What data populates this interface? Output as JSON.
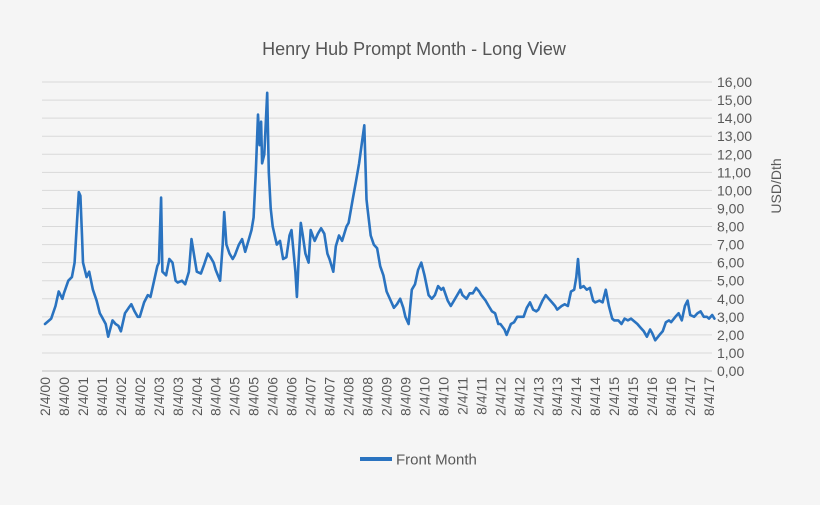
{
  "chart_data": {
    "type": "line",
    "title": "Henry Hub Prompt Month - Long View",
    "ylabel": "USD/Dth",
    "xlabel": "",
    "y_axis_position": "right",
    "ylim": [
      0,
      16
    ],
    "y_ticks": [
      0,
      1,
      2,
      3,
      4,
      5,
      6,
      7,
      8,
      9,
      10,
      11,
      12,
      13,
      14,
      15,
      16
    ],
    "y_tick_labels": [
      "0,00",
      "1,00",
      "2,00",
      "3,00",
      "4,00",
      "5,00",
      "6,00",
      "7,00",
      "8,00",
      "9,00",
      "10,00",
      "11,00",
      "12,00",
      "13,00",
      "14,00",
      "15,00",
      "16,00"
    ],
    "x_tick_labels": [
      "2/4/00",
      "8/4/00",
      "2/4/01",
      "8/4/01",
      "2/4/02",
      "8/4/02",
      "2/4/03",
      "8/4/03",
      "2/4/04",
      "8/4/04",
      "2/4/05",
      "8/4/05",
      "2/4/06",
      "8/4/06",
      "2/4/07",
      "8/4/07",
      "2/4/08",
      "8/4/08",
      "2/4/09",
      "8/4/09",
      "2/4/10",
      "8/4/10",
      "2/4/11",
      "8/4/11",
      "2/4/12",
      "8/4/12",
      "2/4/13",
      "8/4/13",
      "2/4/14",
      "8/4/14",
      "2/4/15",
      "8/4/15",
      "2/4/16",
      "8/4/16",
      "2/4/17",
      "8/4/17"
    ],
    "grid": true,
    "legend": {
      "placement": "bottom",
      "entries": [
        "Front Month"
      ]
    },
    "series": [
      {
        "name": "Front Month",
        "color": "#2a73c0",
        "points": [
          [
            "2000-02-04",
            2.6
          ],
          [
            "2000-04-04",
            2.9
          ],
          [
            "2000-05-15",
            3.6
          ],
          [
            "2000-06-15",
            4.4
          ],
          [
            "2000-07-20",
            4.0
          ],
          [
            "2000-08-04",
            4.3
          ],
          [
            "2000-09-15",
            5.0
          ],
          [
            "2000-10-20",
            5.2
          ],
          [
            "2000-11-15",
            6.0
          ],
          [
            "2000-12-05",
            8.0
          ],
          [
            "2000-12-25",
            9.9
          ],
          [
            "2001-01-10",
            9.7
          ],
          [
            "2001-01-25",
            7.5
          ],
          [
            "2001-02-04",
            6.0
          ],
          [
            "2001-03-10",
            5.2
          ],
          [
            "2001-04-04",
            5.5
          ],
          [
            "2001-05-10",
            4.5
          ],
          [
            "2001-06-15",
            3.9
          ],
          [
            "2001-07-15",
            3.2
          ],
          [
            "2001-08-04",
            3.0
          ],
          [
            "2001-09-10",
            2.6
          ],
          [
            "2001-10-04",
            1.9
          ],
          [
            "2001-11-15",
            2.8
          ],
          [
            "2001-12-15",
            2.6
          ],
          [
            "2002-01-10",
            2.5
          ],
          [
            "2002-02-04",
            2.2
          ],
          [
            "2002-03-15",
            3.2
          ],
          [
            "2002-04-20",
            3.5
          ],
          [
            "2002-05-15",
            3.7
          ],
          [
            "2002-06-15",
            3.3
          ],
          [
            "2002-07-15",
            3.0
          ],
          [
            "2002-08-04",
            3.0
          ],
          [
            "2002-09-15",
            3.8
          ],
          [
            "2002-10-20",
            4.2
          ],
          [
            "2002-11-15",
            4.1
          ],
          [
            "2002-12-20",
            5.0
          ],
          [
            "2003-01-20",
            5.8
          ],
          [
            "2003-02-04",
            6.0
          ],
          [
            "2003-02-25",
            9.6
          ],
          [
            "2003-03-10",
            5.5
          ],
          [
            "2003-04-15",
            5.3
          ],
          [
            "2003-05-15",
            6.2
          ],
          [
            "2003-06-15",
            6.0
          ],
          [
            "2003-07-15",
            5.0
          ],
          [
            "2003-08-04",
            4.9
          ],
          [
            "2003-09-15",
            5.0
          ],
          [
            "2003-10-15",
            4.8
          ],
          [
            "2003-11-20",
            5.5
          ],
          [
            "2003-12-15",
            7.3
          ],
          [
            "2004-01-15",
            6.2
          ],
          [
            "2004-02-04",
            5.5
          ],
          [
            "2004-03-15",
            5.4
          ],
          [
            "2004-04-15",
            5.9
          ],
          [
            "2004-05-20",
            6.5
          ],
          [
            "2004-06-15",
            6.3
          ],
          [
            "2004-07-15",
            6.0
          ],
          [
            "2004-08-04",
            5.6
          ],
          [
            "2004-09-15",
            5.0
          ],
          [
            "2004-10-10",
            7.0
          ],
          [
            "2004-10-25",
            8.8
          ],
          [
            "2004-11-15",
            7.0
          ],
          [
            "2004-12-15",
            6.5
          ],
          [
            "2005-01-15",
            6.2
          ],
          [
            "2005-02-04",
            6.4
          ],
          [
            "2005-03-15",
            7.0
          ],
          [
            "2005-04-15",
            7.3
          ],
          [
            "2005-05-15",
            6.6
          ],
          [
            "2005-06-15",
            7.2
          ],
          [
            "2005-07-15",
            7.8
          ],
          [
            "2005-08-04",
            8.5
          ],
          [
            "2005-08-25",
            11.0
          ],
          [
            "2005-09-15",
            14.2
          ],
          [
            "2005-10-01",
            12.5
          ],
          [
            "2005-10-15",
            13.8
          ],
          [
            "2005-10-25",
            11.5
          ],
          [
            "2005-11-15",
            12.0
          ],
          [
            "2005-12-13",
            15.4
          ],
          [
            "2005-12-28",
            11.0
          ],
          [
            "2006-01-15",
            9.0
          ],
          [
            "2006-02-04",
            8.0
          ],
          [
            "2006-03-15",
            7.0
          ],
          [
            "2006-04-15",
            7.2
          ],
          [
            "2006-05-15",
            6.2
          ],
          [
            "2006-06-15",
            6.3
          ],
          [
            "2006-07-15",
            7.5
          ],
          [
            "2006-08-04",
            7.8
          ],
          [
            "2006-09-10",
            5.5
          ],
          [
            "2006-09-25",
            4.1
          ],
          [
            "2006-10-10",
            6.0
          ],
          [
            "2006-11-01",
            8.2
          ],
          [
            "2006-11-20",
            7.5
          ],
          [
            "2006-12-15",
            6.5
          ],
          [
            "2007-01-15",
            6.0
          ],
          [
            "2007-02-04",
            7.8
          ],
          [
            "2007-03-15",
            7.2
          ],
          [
            "2007-04-15",
            7.6
          ],
          [
            "2007-05-15",
            7.9
          ],
          [
            "2007-06-15",
            7.6
          ],
          [
            "2007-07-15",
            6.5
          ],
          [
            "2007-08-04",
            6.2
          ],
          [
            "2007-09-10",
            5.5
          ],
          [
            "2007-10-04",
            6.9
          ],
          [
            "2007-11-04",
            7.5
          ],
          [
            "2007-12-04",
            7.2
          ],
          [
            "2008-01-15",
            8.0
          ],
          [
            "2008-02-04",
            8.2
          ],
          [
            "2008-03-15",
            9.5
          ],
          [
            "2008-04-15",
            10.5
          ],
          [
            "2008-05-15",
            11.5
          ],
          [
            "2008-06-15",
            12.8
          ],
          [
            "2008-07-04",
            13.6
          ],
          [
            "2008-07-25",
            9.5
          ],
          [
            "2008-08-04",
            9.0
          ],
          [
            "2008-09-04",
            7.5
          ],
          [
            "2008-10-04",
            7.0
          ],
          [
            "2008-11-04",
            6.8
          ],
          [
            "2008-12-04",
            5.8
          ],
          [
            "2009-01-04",
            5.3
          ],
          [
            "2009-02-04",
            4.4
          ],
          [
            "2009-03-15",
            3.9
          ],
          [
            "2009-04-15",
            3.5
          ],
          [
            "2009-05-15",
            3.7
          ],
          [
            "2009-06-15",
            4.0
          ],
          [
            "2009-07-15",
            3.5
          ],
          [
            "2009-08-04",
            3.0
          ],
          [
            "2009-09-04",
            2.6
          ],
          [
            "2009-10-04",
            4.5
          ],
          [
            "2009-11-04",
            4.8
          ],
          [
            "2009-12-04",
            5.6
          ],
          [
            "2010-01-04",
            6.0
          ],
          [
            "2010-02-04",
            5.3
          ],
          [
            "2010-03-15",
            4.2
          ],
          [
            "2010-04-15",
            4.0
          ],
          [
            "2010-05-15",
            4.2
          ],
          [
            "2010-06-15",
            4.7
          ],
          [
            "2010-07-15",
            4.5
          ],
          [
            "2010-08-04",
            4.6
          ],
          [
            "2010-09-15",
            3.9
          ],
          [
            "2010-10-15",
            3.6
          ],
          [
            "2010-11-15",
            3.9
          ],
          [
            "2010-12-15",
            4.2
          ],
          [
            "2011-01-15",
            4.5
          ],
          [
            "2011-02-04",
            4.2
          ],
          [
            "2011-03-15",
            4.0
          ],
          [
            "2011-04-15",
            4.3
          ],
          [
            "2011-05-15",
            4.3
          ],
          [
            "2011-06-15",
            4.6
          ],
          [
            "2011-07-15",
            4.4
          ],
          [
            "2011-08-04",
            4.2
          ],
          [
            "2011-09-15",
            3.9
          ],
          [
            "2011-10-15",
            3.6
          ],
          [
            "2011-11-15",
            3.3
          ],
          [
            "2011-12-15",
            3.2
          ],
          [
            "2012-01-15",
            2.6
          ],
          [
            "2012-02-04",
            2.6
          ],
          [
            "2012-03-15",
            2.3
          ],
          [
            "2012-04-04",
            2.0
          ],
          [
            "2012-05-15",
            2.6
          ],
          [
            "2012-06-15",
            2.7
          ],
          [
            "2012-07-15",
            3.0
          ],
          [
            "2012-08-04",
            3.0
          ],
          [
            "2012-09-15",
            3.0
          ],
          [
            "2012-10-15",
            3.5
          ],
          [
            "2012-11-15",
            3.8
          ],
          [
            "2012-12-15",
            3.4
          ],
          [
            "2013-01-15",
            3.3
          ],
          [
            "2013-02-04",
            3.4
          ],
          [
            "2013-03-15",
            3.9
          ],
          [
            "2013-04-15",
            4.2
          ],
          [
            "2013-05-15",
            4.0
          ],
          [
            "2013-06-15",
            3.8
          ],
          [
            "2013-07-15",
            3.6
          ],
          [
            "2013-08-04",
            3.4
          ],
          [
            "2013-09-15",
            3.6
          ],
          [
            "2013-10-15",
            3.7
          ],
          [
            "2013-11-15",
            3.6
          ],
          [
            "2013-12-15",
            4.4
          ],
          [
            "2014-01-15",
            4.5
          ],
          [
            "2014-02-04",
            5.2
          ],
          [
            "2014-02-20",
            6.2
          ],
          [
            "2014-03-15",
            4.6
          ],
          [
            "2014-04-15",
            4.7
          ],
          [
            "2014-05-15",
            4.5
          ],
          [
            "2014-06-15",
            4.6
          ],
          [
            "2014-07-15",
            3.9
          ],
          [
            "2014-08-04",
            3.8
          ],
          [
            "2014-09-15",
            3.9
          ],
          [
            "2014-10-15",
            3.8
          ],
          [
            "2014-11-15",
            4.5
          ],
          [
            "2014-12-15",
            3.6
          ],
          [
            "2015-01-15",
            2.9
          ],
          [
            "2015-02-04",
            2.8
          ],
          [
            "2015-03-15",
            2.8
          ],
          [
            "2015-04-15",
            2.6
          ],
          [
            "2015-05-15",
            2.9
          ],
          [
            "2015-06-15",
            2.8
          ],
          [
            "2015-07-15",
            2.9
          ],
          [
            "2015-08-04",
            2.8
          ],
          [
            "2015-09-15",
            2.6
          ],
          [
            "2015-10-15",
            2.4
          ],
          [
            "2015-11-15",
            2.2
          ],
          [
            "2015-12-15",
            1.9
          ],
          [
            "2016-01-15",
            2.3
          ],
          [
            "2016-02-04",
            2.1
          ],
          [
            "2016-03-04",
            1.7
          ],
          [
            "2016-04-15",
            2.0
          ],
          [
            "2016-05-15",
            2.2
          ],
          [
            "2016-06-15",
            2.7
          ],
          [
            "2016-07-15",
            2.8
          ],
          [
            "2016-08-04",
            2.7
          ],
          [
            "2016-09-15",
            3.0
          ],
          [
            "2016-10-15",
            3.2
          ],
          [
            "2016-11-15",
            2.8
          ],
          [
            "2016-12-15",
            3.6
          ],
          [
            "2017-01-10",
            3.9
          ],
          [
            "2017-02-04",
            3.1
          ],
          [
            "2017-03-15",
            3.0
          ],
          [
            "2017-04-15",
            3.2
          ],
          [
            "2017-05-15",
            3.3
          ],
          [
            "2017-06-15",
            3.0
          ],
          [
            "2017-07-15",
            3.0
          ],
          [
            "2017-08-04",
            2.9
          ],
          [
            "2017-09-04",
            3.1
          ],
          [
            "2017-09-25",
            2.9
          ]
        ]
      }
    ]
  }
}
